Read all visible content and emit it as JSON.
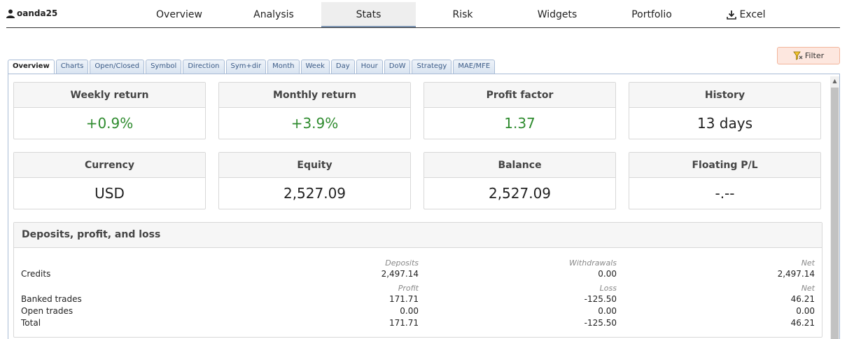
{
  "user": {
    "name": "oanda25",
    "icon": "user-icon"
  },
  "nav": {
    "items": [
      {
        "label": "Overview"
      },
      {
        "label": "Analysis"
      },
      {
        "label": "Stats"
      },
      {
        "label": "Risk"
      },
      {
        "label": "Widgets"
      },
      {
        "label": "Portfolio"
      },
      {
        "label": "Excel",
        "icon": "download-icon"
      }
    ],
    "active": "Stats"
  },
  "filter": {
    "label": "Filter",
    "icon": "filter-icon"
  },
  "subtabs": {
    "items": [
      "Overview",
      "Charts",
      "Open/Closed",
      "Symbol",
      "Direction",
      "Sym+dir",
      "Month",
      "Week",
      "Day",
      "Hour",
      "DoW",
      "Strategy",
      "MAE/MFE"
    ],
    "active": "Overview"
  },
  "cards": [
    {
      "title": "Weekly return",
      "value": "+0.9%",
      "color": "#2e8b2e"
    },
    {
      "title": "Monthly return",
      "value": "+3.9%",
      "color": "#2e8b2e"
    },
    {
      "title": "Profit factor",
      "value": "1.37",
      "color": "#2e8b2e"
    },
    {
      "title": "History",
      "value": "13 days"
    },
    {
      "title": "Currency",
      "value": "USD"
    },
    {
      "title": "Equity",
      "value": "2,527.09"
    },
    {
      "title": "Balance",
      "value": "2,527.09"
    },
    {
      "title": "Floating P/L",
      "value": "-.--"
    }
  ],
  "dpl": {
    "title": "Deposits, profit, and loss",
    "credits": {
      "label": "Credits",
      "headers": [
        "Deposits",
        "Withdrawals",
        "Net"
      ],
      "values": [
        "2,497.14",
        "0.00",
        "2,497.14"
      ]
    },
    "trades_headers": [
      "Profit",
      "Loss",
      "Net"
    ],
    "rows": [
      {
        "label": "Banked trades",
        "values": [
          "171.71",
          "-125.50",
          "46.21"
        ]
      },
      {
        "label": "Open trades",
        "values": [
          "0.00",
          "0.00",
          "0.00"
        ]
      },
      {
        "label": "Total",
        "values": [
          "171.71",
          "-125.50",
          "46.21"
        ]
      }
    ]
  }
}
